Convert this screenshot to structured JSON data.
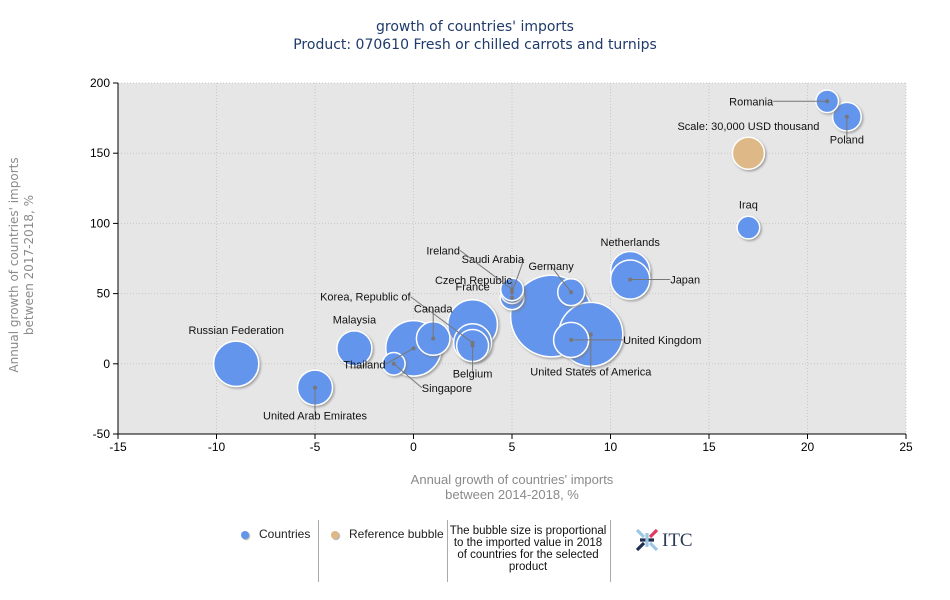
{
  "title_line1": "growth of countries' imports",
  "title_line2": "Product: 070610 Fresh or chilled carrots and turnips",
  "chart_data": {
    "type": "scatter",
    "subtype": "bubble",
    "title": "growth of countries' imports",
    "subtitle": "Product: 070610 Fresh or chilled carrots and turnips",
    "xlabel": "Annual growth of countries' imports between 2014-2018, %",
    "xlabel_line1": "Annual growth of countries' imports",
    "xlabel_line2": "between 2014-2018, %",
    "ylabel_line1": "Annual growth of countries' imports",
    "ylabel_line2": "between 2017-2018, %",
    "xlim": [
      -15,
      25
    ],
    "ylim": [
      -50,
      200
    ],
    "xticks": [
      -15,
      -10,
      -5,
      0,
      5,
      10,
      15,
      20,
      25
    ],
    "yticks": [
      -50,
      0,
      50,
      100,
      150,
      200
    ],
    "grid": true,
    "series": [
      {
        "name": "Countries",
        "color": "#6495ed",
        "points": [
          {
            "label": "",
            "x": 7,
            "y": 34,
            "size": 6.5
          },
          {
            "label": "United States of America",
            "x": 9,
            "y": 21,
            "size": 4.0
          },
          {
            "label": "Thailand",
            "x": 0,
            "y": 11,
            "size": 3.0
          },
          {
            "label": "Russian Federation",
            "x": -9,
            "y": 0,
            "size": 2.0
          },
          {
            "label": "France",
            "x": 3,
            "y": 28,
            "size": 2.4
          },
          {
            "label": "Netherlands",
            "x": 11,
            "y": 66,
            "size": 1.5
          },
          {
            "label": "Japan",
            "x": 11,
            "y": 60,
            "size": 1.5
          },
          {
            "label": "Korea, Republic of",
            "x": 3,
            "y": 15,
            "size": 1.4
          },
          {
            "label": "Canada",
            "x": 1,
            "y": 18,
            "size": 1.1
          },
          {
            "label": "United Arab Emirates",
            "x": -5,
            "y": -17,
            "size": 1.2
          },
          {
            "label": "Malaysia",
            "x": -3,
            "y": 11,
            "size": 1.2
          },
          {
            "label": "United Kingdom",
            "x": 8,
            "y": 17,
            "size": 1.2
          },
          {
            "label": "Belgium",
            "x": 3,
            "y": 13,
            "size": 1.0
          },
          {
            "label": "Poland",
            "x": 22,
            "y": 176,
            "size": 0.8
          },
          {
            "label": "Germany",
            "x": 8,
            "y": 51,
            "size": 0.7
          },
          {
            "label": "Czech Republic",
            "x": 5,
            "y": 47,
            "size": 0.55
          },
          {
            "label": "Saudi Arabia",
            "x": 5,
            "y": 51,
            "size": 0.5
          },
          {
            "label": "Ireland",
            "x": 5,
            "y": 53,
            "size": 0.5
          },
          {
            "label": "Iraq",
            "x": 17,
            "y": 97,
            "size": 0.5
          },
          {
            "label": "Romania",
            "x": 21,
            "y": 187,
            "size": 0.5
          },
          {
            "label": "Singapore",
            "x": -1,
            "y": 0,
            "size": 0.5
          }
        ]
      },
      {
        "name": "Reference bubble",
        "color": "#deb887",
        "points": [
          {
            "label": "Scale: 30,000 USD thousand",
            "x": 17,
            "y": 150,
            "size": 1.0
          }
        ]
      }
    ],
    "legend": [
      "Countries",
      "Reference bubble"
    ],
    "legend_position": "bottom",
    "annotation": "The bubble size is proportional to the imported value in 2018 of countries for the selected product"
  },
  "legend": {
    "countries": "Countries",
    "reference": "Reference bubble",
    "note": "The bubble size is proportional to the imported value in 2018 of countries for the selected product",
    "logo_text": "ITC"
  }
}
